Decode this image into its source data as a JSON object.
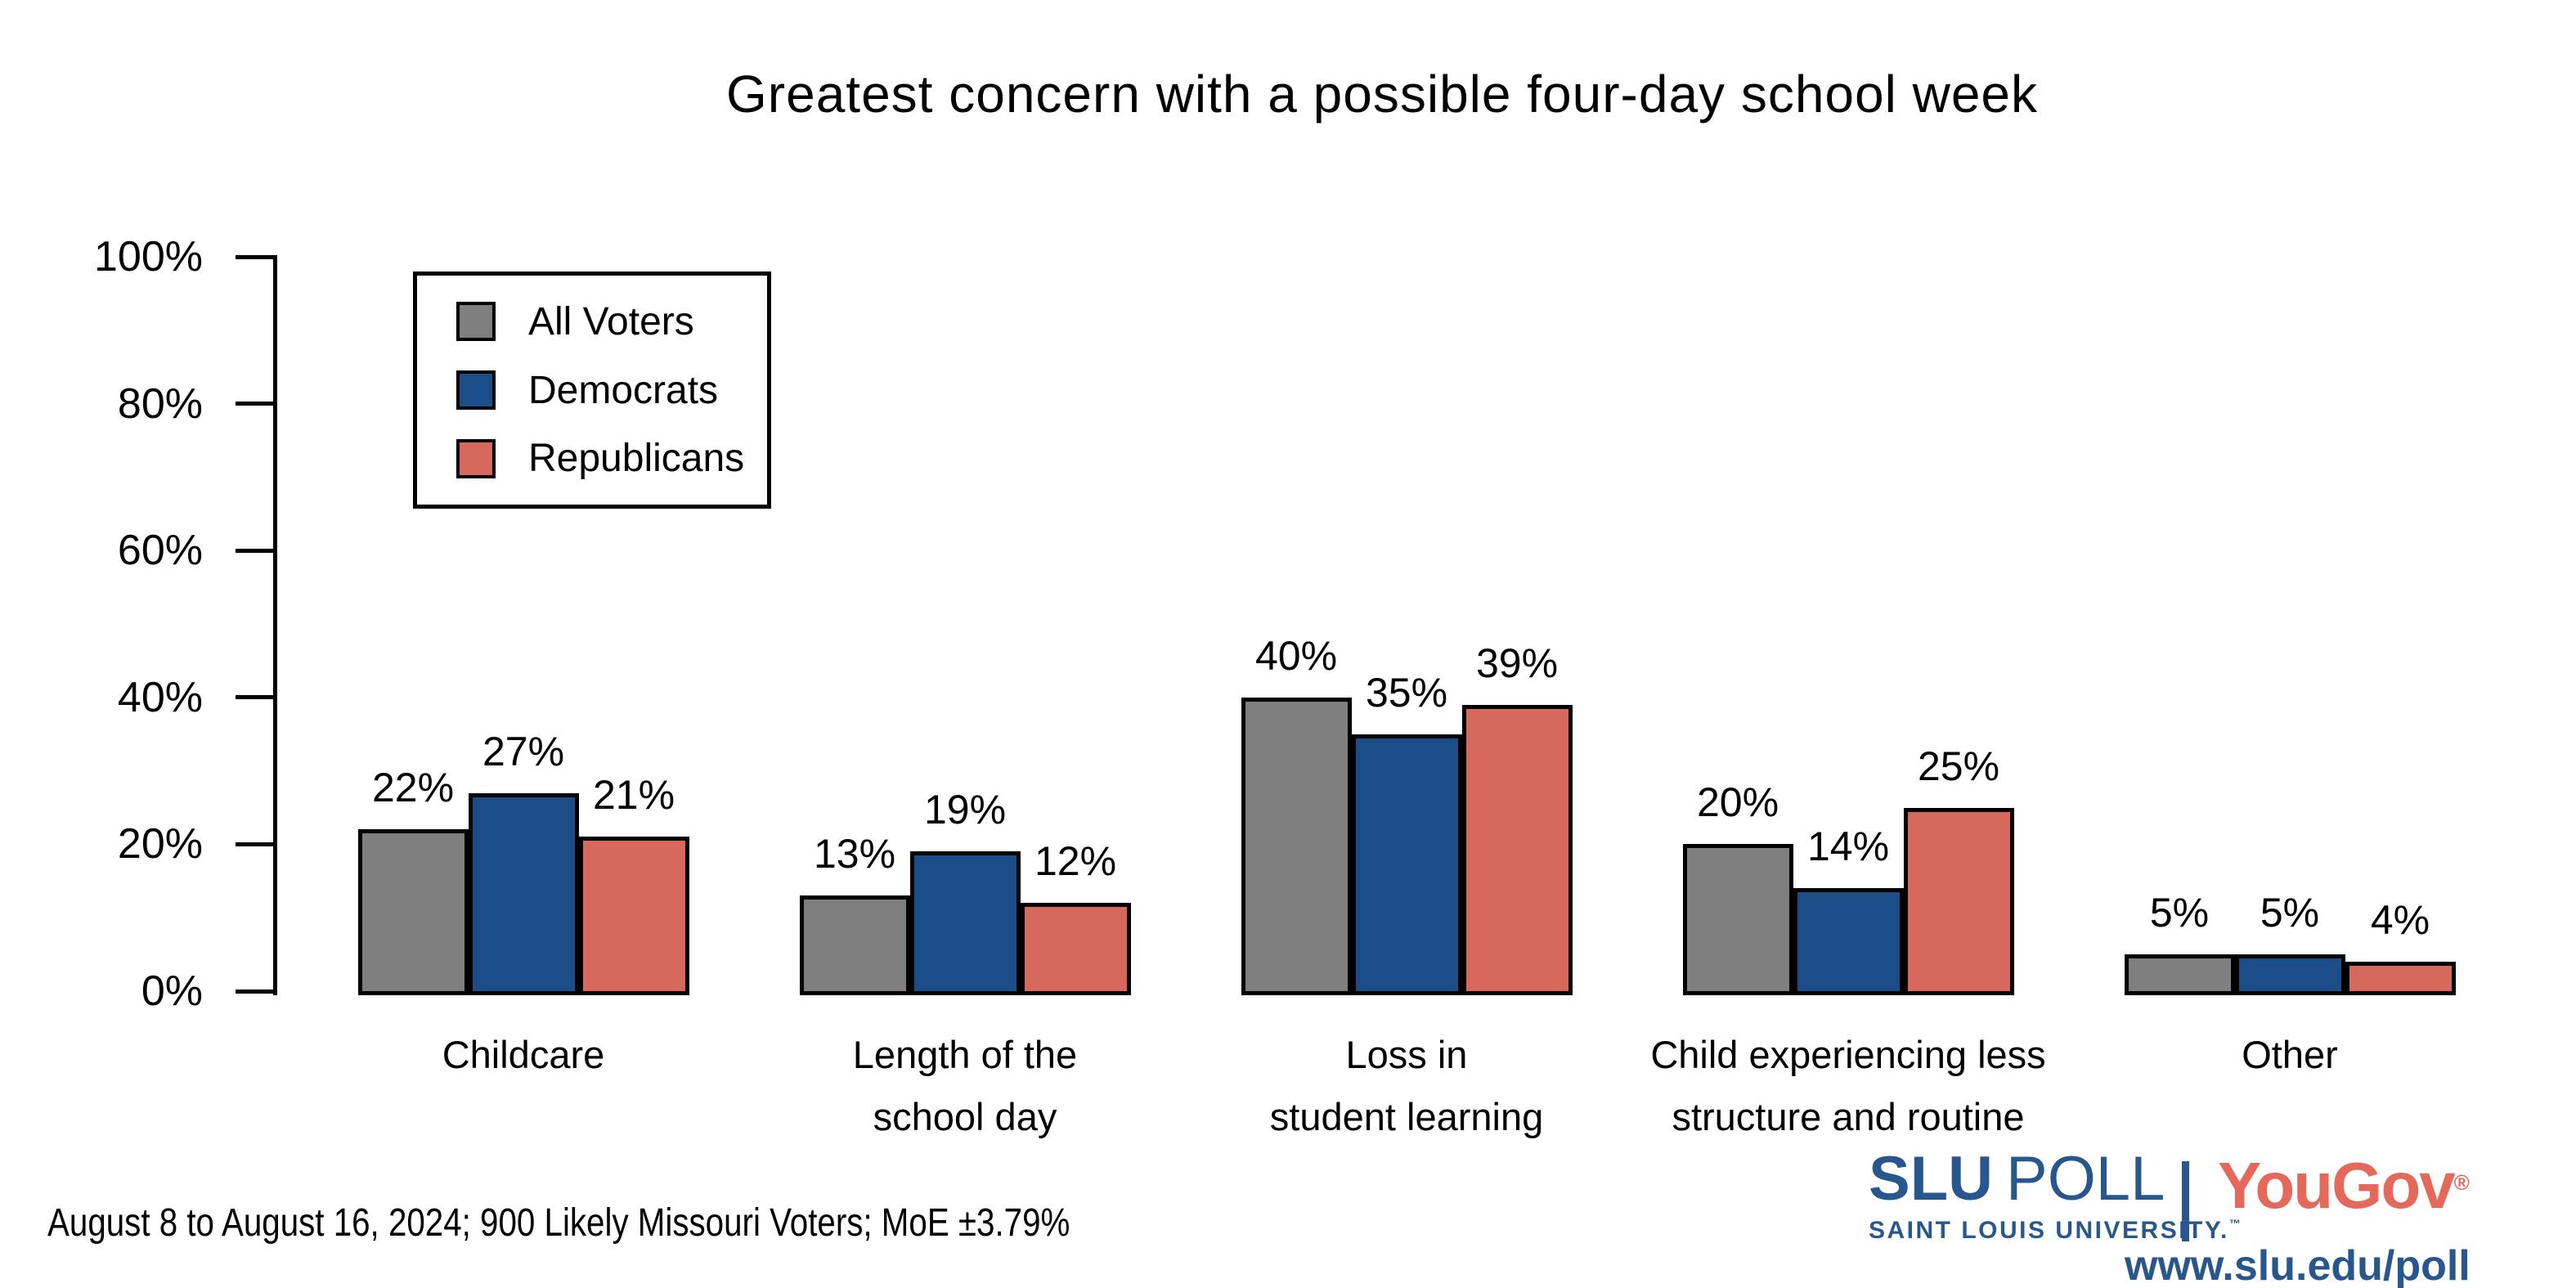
{
  "title": "Greatest concern with a possible four-day school week",
  "chart_data": {
    "type": "bar",
    "title": "Greatest concern with a possible four-day school week",
    "categories": [
      "Childcare",
      "Length of the\nschool day",
      "Loss in\nstudent learning",
      "Child experiencing less\nstructure and routine",
      "Other"
    ],
    "series": [
      {
        "name": "All Voters",
        "color": "#7f7f7f",
        "values": [
          22,
          13,
          40,
          20,
          5
        ]
      },
      {
        "name": "Democrats",
        "color": "#1b4e88",
        "values": [
          27,
          19,
          35,
          14,
          5
        ]
      },
      {
        "name": "Republicans",
        "color": "#d6695c",
        "values": [
          21,
          12,
          39,
          25,
          4
        ]
      }
    ],
    "value_suffix": "%",
    "xlabel": "",
    "ylabel": "",
    "ylim": [
      0,
      100
    ],
    "ytick_step": 20,
    "yticks": [
      "0%",
      "20%",
      "40%",
      "60%",
      "80%",
      "100%"
    ],
    "grid": false,
    "legend_position": "top-left",
    "bar_outline_color": "#000000"
  },
  "footer": {
    "note": "August 8 to August 16, 2024; 900 Likely Missouri Voters; MoE ±3.79%"
  },
  "branding": {
    "slu_bold": "SLU",
    "slu_light": "POLL",
    "slu_sub": "SAINT LOUIS UNIVERSITY.",
    "slu_tm": "™",
    "partner": "YouGov",
    "partner_reg": "®",
    "url": "www.slu.edu/poll",
    "slu_blue": "#28578e",
    "yougov_red": "#e4695a"
  }
}
